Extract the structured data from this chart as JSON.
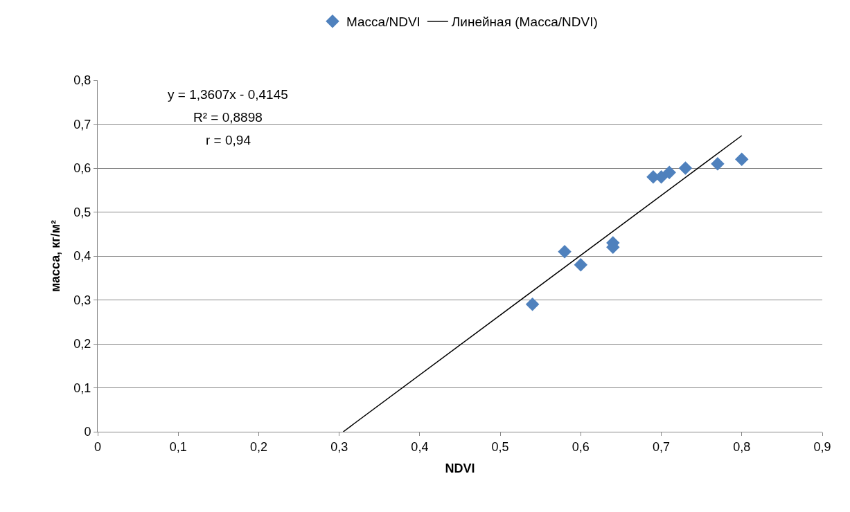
{
  "chart_data": {
    "type": "scatter",
    "xlabel": "NDVI",
    "ylabel": "масса, кг/м²",
    "annotations": [
      "y = 1,3607x - 0,4145",
      "R² = 0,8898",
      "r = 0,94"
    ],
    "series": [
      {
        "name": "Масса/NDVI",
        "color": "#4f81bd",
        "marker": "diamond",
        "x": [
          0.54,
          0.58,
          0.6,
          0.64,
          0.64,
          0.69,
          0.7,
          0.71,
          0.73,
          0.77,
          0.8
        ],
        "values": [
          0.29,
          0.41,
          0.38,
          0.43,
          0.42,
          0.58,
          0.58,
          0.59,
          0.6,
          0.61,
          0.62
        ]
      },
      {
        "name": "Линейная (Масса/NDVI)",
        "color": "#000000",
        "type": "line",
        "marker": "none",
        "line_style": "solid",
        "x": [
          0.305,
          0.8
        ],
        "values": [
          0,
          0.674
        ]
      }
    ],
    "xlim": [
      0,
      0.9
    ],
    "ylim": [
      0,
      0.8
    ],
    "xticks": [
      0,
      {
        "value": 0.1,
        "label": "0,1"
      },
      {
        "value": 0.2,
        "label": "0,2"
      },
      {
        "value": 0.3,
        "label": "0,3"
      },
      {
        "value": 0.4,
        "label": "0,4"
      },
      {
        "value": 0.5,
        "label": "0,5"
      },
      {
        "value": 0.6,
        "label": "0,6"
      },
      {
        "value": 0.7,
        "label": "0,7"
      },
      {
        "value": 0.8,
        "label": "0,8"
      },
      {
        "value": 0.9,
        "label": "0,9"
      }
    ],
    "yticks": [
      0,
      {
        "value": 0.1,
        "label": "0,1"
      },
      {
        "value": 0.2,
        "label": "0,2"
      },
      {
        "value": 0.3,
        "label": "0,3"
      },
      {
        "value": 0.4,
        "label": "0,4"
      },
      {
        "value": 0.5,
        "label": "0,5"
      },
      {
        "value": 0.6,
        "label": "0,6"
      },
      {
        "value": 0.7,
        "label": "0,7"
      },
      {
        "value": 0.8,
        "label": "0,8"
      }
    ],
    "grid": "y",
    "legend": "top"
  }
}
